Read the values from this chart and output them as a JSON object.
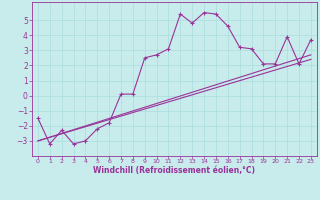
{
  "title": "",
  "xlabel": "Windchill (Refroidissement éolien,°C)",
  "bg_color": "#c8ecec",
  "line_color": "#993399",
  "grid_color": "#aadddd",
  "xlim": [
    -0.5,
    23.5
  ],
  "ylim": [
    -4.0,
    6.2
  ],
  "yticks": [
    -3,
    -2,
    -1,
    0,
    1,
    2,
    3,
    4,
    5
  ],
  "xticks": [
    0,
    1,
    2,
    3,
    4,
    5,
    6,
    7,
    8,
    9,
    10,
    11,
    12,
    13,
    14,
    15,
    16,
    17,
    18,
    19,
    20,
    21,
    22,
    23
  ],
  "series1_x": [
    0,
    1,
    2,
    3,
    4,
    5,
    6,
    7,
    8,
    9,
    10,
    11,
    12,
    13,
    14,
    15,
    16,
    17,
    18,
    19,
    20,
    21,
    22,
    23
  ],
  "series1_y": [
    -1.5,
    -3.2,
    -2.3,
    -3.2,
    -3.0,
    -2.2,
    -1.8,
    0.1,
    0.1,
    2.5,
    2.7,
    3.1,
    5.4,
    4.8,
    5.5,
    5.4,
    4.6,
    3.2,
    3.1,
    2.1,
    2.1,
    3.9,
    2.1,
    3.7
  ],
  "series2_x": [
    0,
    23
  ],
  "series2_y": [
    -3.0,
    2.7
  ],
  "series3_x": [
    0,
    23
  ],
  "series3_y": [
    -3.0,
    2.4
  ],
  "marker_size": 3,
  "line_width": 0.8,
  "xlabel_fontsize": 5.5,
  "xlabel_fontweight": "bold",
  "xtick_fontsize": 4.5,
  "ytick_fontsize": 5.5,
  "grid_linewidth": 0.5,
  "spine_linewidth": 0.6
}
